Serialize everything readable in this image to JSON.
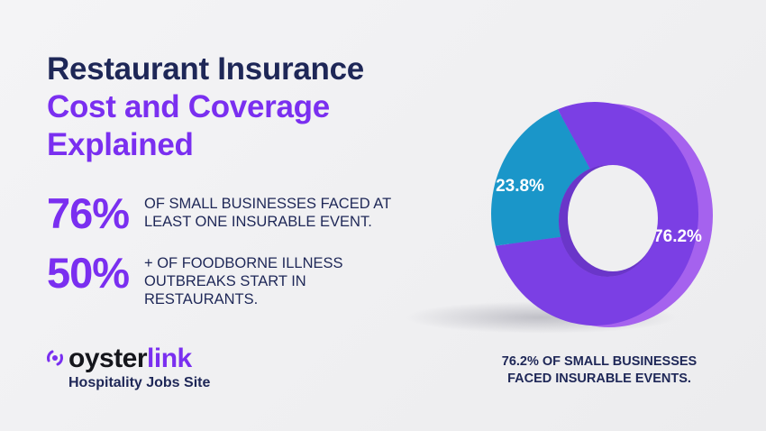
{
  "title": {
    "line1": "Restaurant Insurance",
    "line2": "Cost and Coverage",
    "line3": "Explained"
  },
  "stats": [
    {
      "value": "76%",
      "lines": [
        "OF SMALL BUSINESSES FACED AT",
        "LEAST ONE INSURABLE EVENT."
      ]
    },
    {
      "value": "50%",
      "lines": [
        "+ OF FOODBORNE ILLNESS",
        "OUTBREAKS START IN",
        "RESTAURANTS."
      ]
    }
  ],
  "logo": {
    "word_part1": "oyster",
    "word_part2": "link",
    "tagline": "Hospitality Jobs Site"
  },
  "caption": {
    "line1": "76.2% OF SMALL BUSINESSES",
    "line2": "FACED INSURABLE EVENTS."
  },
  "colors": {
    "navy": "#1e2757",
    "purple": "#7a2ff0",
    "donut_purple": "#7b3fe4",
    "donut_blue": "#1a96c9"
  },
  "chart_data": {
    "type": "pie",
    "donut": true,
    "slices": [
      {
        "value": 76.2,
        "label": "76.2%",
        "color": "#7b3fe4"
      },
      {
        "value": 23.8,
        "label": "23.8%",
        "color": "#1a96c9"
      }
    ]
  }
}
